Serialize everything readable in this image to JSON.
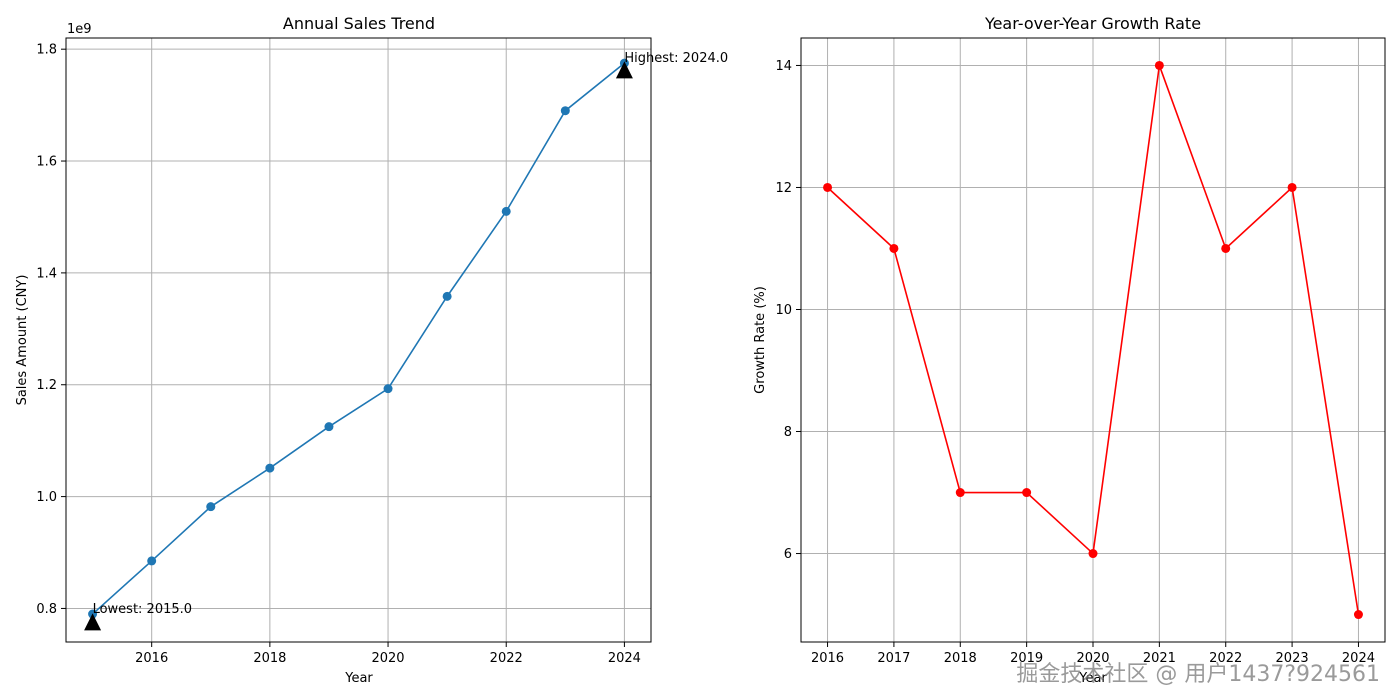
{
  "chart_data": [
    {
      "type": "line",
      "title": "Annual Sales Trend",
      "xlabel": "Year",
      "ylabel": "Sales Amount (CNY)",
      "y_offset_label": "1e9",
      "x": [
        2015,
        2016,
        2017,
        2018,
        2019,
        2020,
        2021,
        2022,
        2023,
        2024
      ],
      "series": [
        {
          "values": [
            0.79,
            0.885,
            0.982,
            1.051,
            1.125,
            1.193,
            1.358,
            1.51,
            1.69,
            1.775
          ]
        }
      ],
      "xlim": [
        2014.55,
        2024.45
      ],
      "ylim": [
        0.74,
        1.82
      ],
      "xticks": [
        2016,
        2018,
        2020,
        2022,
        2024
      ],
      "yticks": [
        0.8,
        1.0,
        1.2,
        1.4,
        1.6,
        1.8
      ],
      "ytick_labels": [
        "0.8",
        "1.0",
        "1.2",
        "1.4",
        "1.6",
        "1.8"
      ],
      "grid": true,
      "color": "#1f77b4",
      "annotations": [
        {
          "text": "Lowest: 2015.0",
          "x": 2015,
          "y": 0.79,
          "marker_y": 0.775
        },
        {
          "text": "Highest: 2024.0",
          "x": 2024,
          "y": 1.775,
          "marker_y": 1.762
        }
      ]
    },
    {
      "type": "line",
      "title": "Year-over-Year Growth Rate",
      "xlabel": "Year",
      "ylabel": "Growth Rate (%)",
      "x": [
        2016,
        2017,
        2018,
        2019,
        2020,
        2021,
        2022,
        2023,
        2024
      ],
      "series": [
        {
          "values": [
            12,
            11,
            7,
            7,
            6,
            14,
            11,
            12,
            5
          ]
        }
      ],
      "xlim": [
        2015.6,
        2024.4
      ],
      "ylim": [
        4.55,
        14.45
      ],
      "xticks": [
        2016,
        2017,
        2018,
        2019,
        2020,
        2021,
        2022,
        2023,
        2024
      ],
      "yticks": [
        6,
        8,
        10,
        12,
        14
      ],
      "ytick_labels": [
        "6",
        "8",
        "10",
        "12",
        "14"
      ],
      "grid": true,
      "color": "#ff0000"
    }
  ],
  "watermark": "掘金技术社区 @ 用户1437?924561"
}
